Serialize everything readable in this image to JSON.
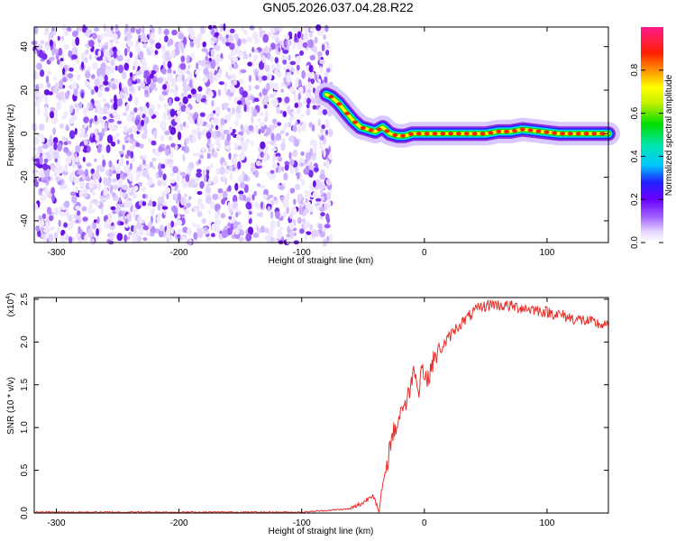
{
  "title": "GN05.2026.037.04.28.R22",
  "colors": {
    "snr_line": "#e8302a",
    "colormap": [
      "#ffffff",
      "#e6d8ff",
      "#8a2be2",
      "#2222ff",
      "#00e5ff",
      "#00e000",
      "#ffff00",
      "#ff8800",
      "#ff0000",
      "#ff1a8c"
    ]
  },
  "chart_data": [
    {
      "type": "heatmap",
      "xlabel": "Height of straight line (km)",
      "ylabel": "Frequency (Hz)",
      "xlim": [
        -318,
        150
      ],
      "ylim": [
        -50,
        49
      ],
      "xticks": [
        -300,
        -200,
        -100,
        0,
        100
      ],
      "yticks": [
        -40,
        -20,
        0,
        20,
        40
      ],
      "grid": false,
      "noise_region": {
        "x_range": [
          -318,
          -76
        ],
        "intensity": "low (0.0-0.2)"
      },
      "ridge": {
        "description": "frequency track of high normalized spectral amplitude",
        "x": [
          -80,
          -76,
          -70,
          -64,
          -58,
          -52,
          -46,
          -40,
          -34,
          -28,
          -22,
          -16,
          -10,
          -4,
          10,
          30,
          50,
          60,
          70,
          80,
          95,
          110,
          130,
          150
        ],
        "y": [
          18,
          17,
          14,
          10,
          6,
          3,
          2,
          1,
          3,
          0,
          -1,
          -1,
          0,
          0,
          0,
          0,
          0,
          1,
          1,
          2,
          1,
          0,
          0,
          0
        ]
      },
      "colorbar": {
        "label": "Normalized spectral amplitude",
        "range": [
          0.0,
          1.0
        ],
        "ticks": [
          0.0,
          0.2,
          0.4,
          0.6,
          0.8
        ]
      }
    },
    {
      "type": "line",
      "xlabel": "Height of straight line (km)",
      "ylabel": "SNR (10 * v/v)",
      "y_multiplier": "(x10",
      "y_multiplier_exp": "4",
      "y_multiplier_close": ")",
      "xlim": [
        -318,
        150
      ],
      "ylim": [
        0.0,
        2.52
      ],
      "xticks": [
        -300,
        -200,
        -100,
        0,
        100
      ],
      "yticks": [
        0.0,
        0.5,
        1.0,
        1.5,
        2.0,
        2.5
      ],
      "grid": false,
      "series": [
        {
          "x": [
            -318,
            -250,
            -150,
            -100,
            -60,
            -50,
            -45,
            -42,
            -40,
            -37,
            -35,
            -32,
            -30,
            -28,
            -25,
            -22,
            -20,
            -17,
            -15,
            -12,
            -10,
            -7,
            -5,
            -2,
            0,
            3,
            5,
            8,
            10,
            15,
            20,
            25,
            30,
            35,
            40,
            45,
            50,
            55,
            60,
            70,
            80,
            90,
            100,
            110,
            120,
            130,
            140,
            150
          ],
          "y": [
            0.01,
            0.01,
            0.01,
            0.01,
            0.05,
            0.12,
            0.18,
            0.22,
            0.15,
            0.0,
            0.25,
            0.45,
            0.6,
            0.8,
            0.95,
            1.05,
            1.15,
            1.3,
            1.25,
            1.45,
            1.6,
            1.7,
            1.4,
            1.75,
            1.6,
            1.55,
            1.7,
            1.8,
            1.85,
            1.95,
            2.05,
            2.15,
            2.22,
            2.28,
            2.35,
            2.4,
            2.42,
            2.45,
            2.43,
            2.42,
            2.4,
            2.38,
            2.35,
            2.32,
            2.28,
            2.25,
            2.22,
            2.18
          ]
        }
      ]
    }
  ]
}
